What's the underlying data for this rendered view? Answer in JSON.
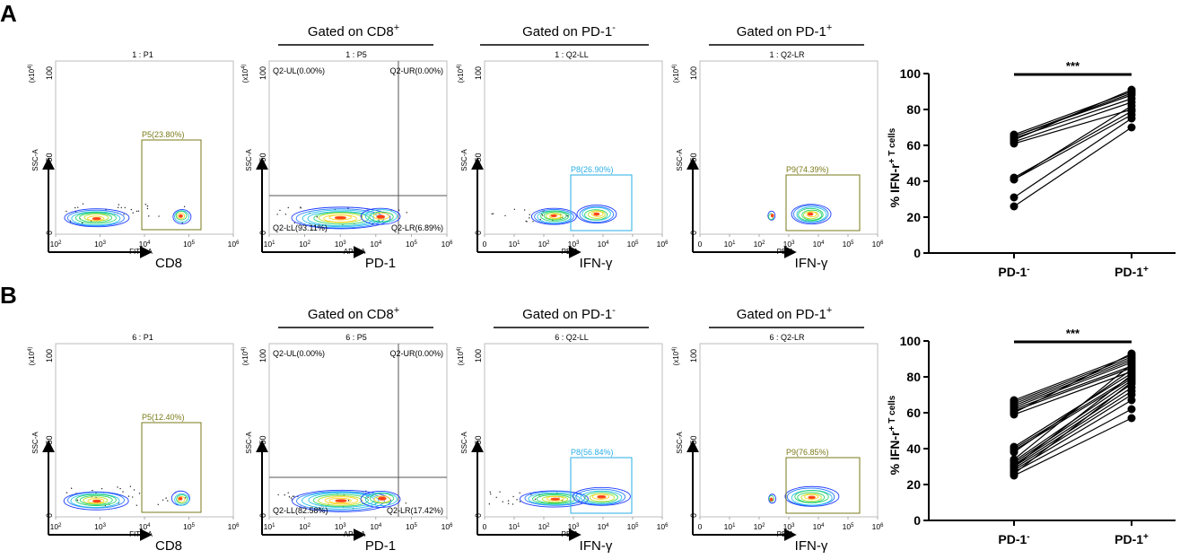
{
  "figure": {
    "panels": [
      {
        "label": "A",
        "flow_plots": [
          {
            "header": "",
            "title": "1 : P1",
            "xlabel": "FITC-A",
            "marker": "CD8",
            "ticks": [
              "10^2",
              "10^3",
              "10^4",
              "10^5",
              "10^6"
            ],
            "gate": "P5(23.80%)",
            "gate_color": "#7a7a1a"
          },
          {
            "header": "Gated on CD8^+",
            "title": "1 : P5",
            "xlabel": "APC-A",
            "marker": "PD-1",
            "ticks": [
              "10^1",
              "10^2",
              "10^3",
              "10^4",
              "10^5",
              "10^6"
            ],
            "quadrants": {
              "UL": "Q2-UL(0.00%)",
              "UR": "Q2-UR(0.00%)",
              "LL": "Q2-LL(93.11%)",
              "LR": "Q2-LR(6.89%)"
            }
          },
          {
            "header": "Gated on PD-1^-",
            "title": "1 : Q2-LL",
            "xlabel": "PE-A",
            "marker": "IFN-γ",
            "ticks": [
              "0",
              "10^1",
              "10^2",
              "10^3",
              "10^4",
              "10^5",
              "10^6"
            ],
            "gate": "P8(26.90%)",
            "gate_color": "#2aaee6"
          },
          {
            "header": "Gated on PD-1^+",
            "title": "1 : Q2-LR",
            "xlabel": "PE-A",
            "marker": "IFN-γ",
            "ticks": [
              "0",
              "10^1",
              "10^2",
              "10^3",
              "10^4",
              "10^5",
              "10^6"
            ],
            "gate": "P9(74.39%)",
            "gate_color": "#7a7a1a"
          }
        ],
        "chart_data": {
          "type": "paired-line",
          "ylabel": "% IFN-r^+ T cells",
          "categories": [
            "PD-1^-",
            "PD-1^+"
          ],
          "ylim": [
            0,
            100
          ],
          "yticks": [
            0,
            20,
            40,
            60,
            80,
            100
          ],
          "significance": "***",
          "pairs": [
            [
              26,
              70
            ],
            [
              31,
              75
            ],
            [
              41,
              77
            ],
            [
              42,
              79
            ],
            [
              61,
              80
            ],
            [
              62,
              84
            ],
            [
              64,
              86
            ],
            [
              65,
              88
            ],
            [
              66,
              90
            ],
            [
              63,
              91
            ],
            [
              65,
              89
            ],
            [
              41,
              82
            ]
          ]
        }
      },
      {
        "label": "B",
        "flow_plots": [
          {
            "header": "",
            "title": "6 : P1",
            "xlabel": "FITC-A",
            "marker": "CD8",
            "ticks": [
              "10^2",
              "10^3",
              "10^4",
              "10^5",
              "10^6"
            ],
            "gate": "P5(12.40%)",
            "gate_color": "#7a7a1a"
          },
          {
            "header": "Gated on CD8^+",
            "title": "6 : P5",
            "xlabel": "APC-A",
            "marker": "PD-1",
            "ticks": [
              "10^1",
              "10^2",
              "10^3",
              "10^4",
              "10^5",
              "10^6"
            ],
            "quadrants": {
              "UL": "Q2-UL(0.00%)",
              "UR": "Q2-UR(0.00%)",
              "LL": "Q2-LL(82.58%)",
              "LR": "Q2-LR(17.42%)"
            }
          },
          {
            "header": "Gated on PD-1^-",
            "title": "6 : Q2-LL",
            "xlabel": "PE-A",
            "marker": "IFN-γ",
            "ticks": [
              "0",
              "10^1",
              "10^2",
              "10^3",
              "10^4",
              "10^5",
              "10^6"
            ],
            "gate": "P8(56.84%)",
            "gate_color": "#2aaee6"
          },
          {
            "header": "Gated on PD-1^+",
            "title": "6 : Q2-LR",
            "xlabel": "PE-A",
            "marker": "IFN-γ",
            "ticks": [
              "0",
              "10^1",
              "10^2",
              "10^3",
              "10^4",
              "10^5",
              "10^6"
            ],
            "gate": "P9(76.85%)",
            "gate_color": "#7a7a1a"
          }
        ],
        "chart_data": {
          "type": "paired-line",
          "ylabel": "% IFN-r^+ T cells",
          "categories": [
            "PD-1^-",
            "PD-1^+"
          ],
          "ylim": [
            0,
            100
          ],
          "yticks": [
            0,
            20,
            40,
            60,
            80,
            100
          ],
          "significance": "***",
          "pairs": [
            [
              25,
              57
            ],
            [
              27,
              62
            ],
            [
              28,
              67
            ],
            [
              29,
              70
            ],
            [
              30,
              72
            ],
            [
              31,
              74
            ],
            [
              32,
              76
            ],
            [
              33,
              78
            ],
            [
              39,
              79
            ],
            [
              40,
              80
            ],
            [
              41,
              82
            ],
            [
              59,
              83
            ],
            [
              61,
              85
            ],
            [
              62,
              86
            ],
            [
              63,
              88
            ],
            [
              64,
              89
            ],
            [
              65,
              90
            ],
            [
              66,
              91
            ],
            [
              67,
              92
            ],
            [
              60,
              93
            ],
            [
              38,
              84
            ],
            [
              30,
              81
            ],
            [
              26,
              77
            ],
            [
              34,
              87
            ]
          ]
        }
      }
    ]
  }
}
